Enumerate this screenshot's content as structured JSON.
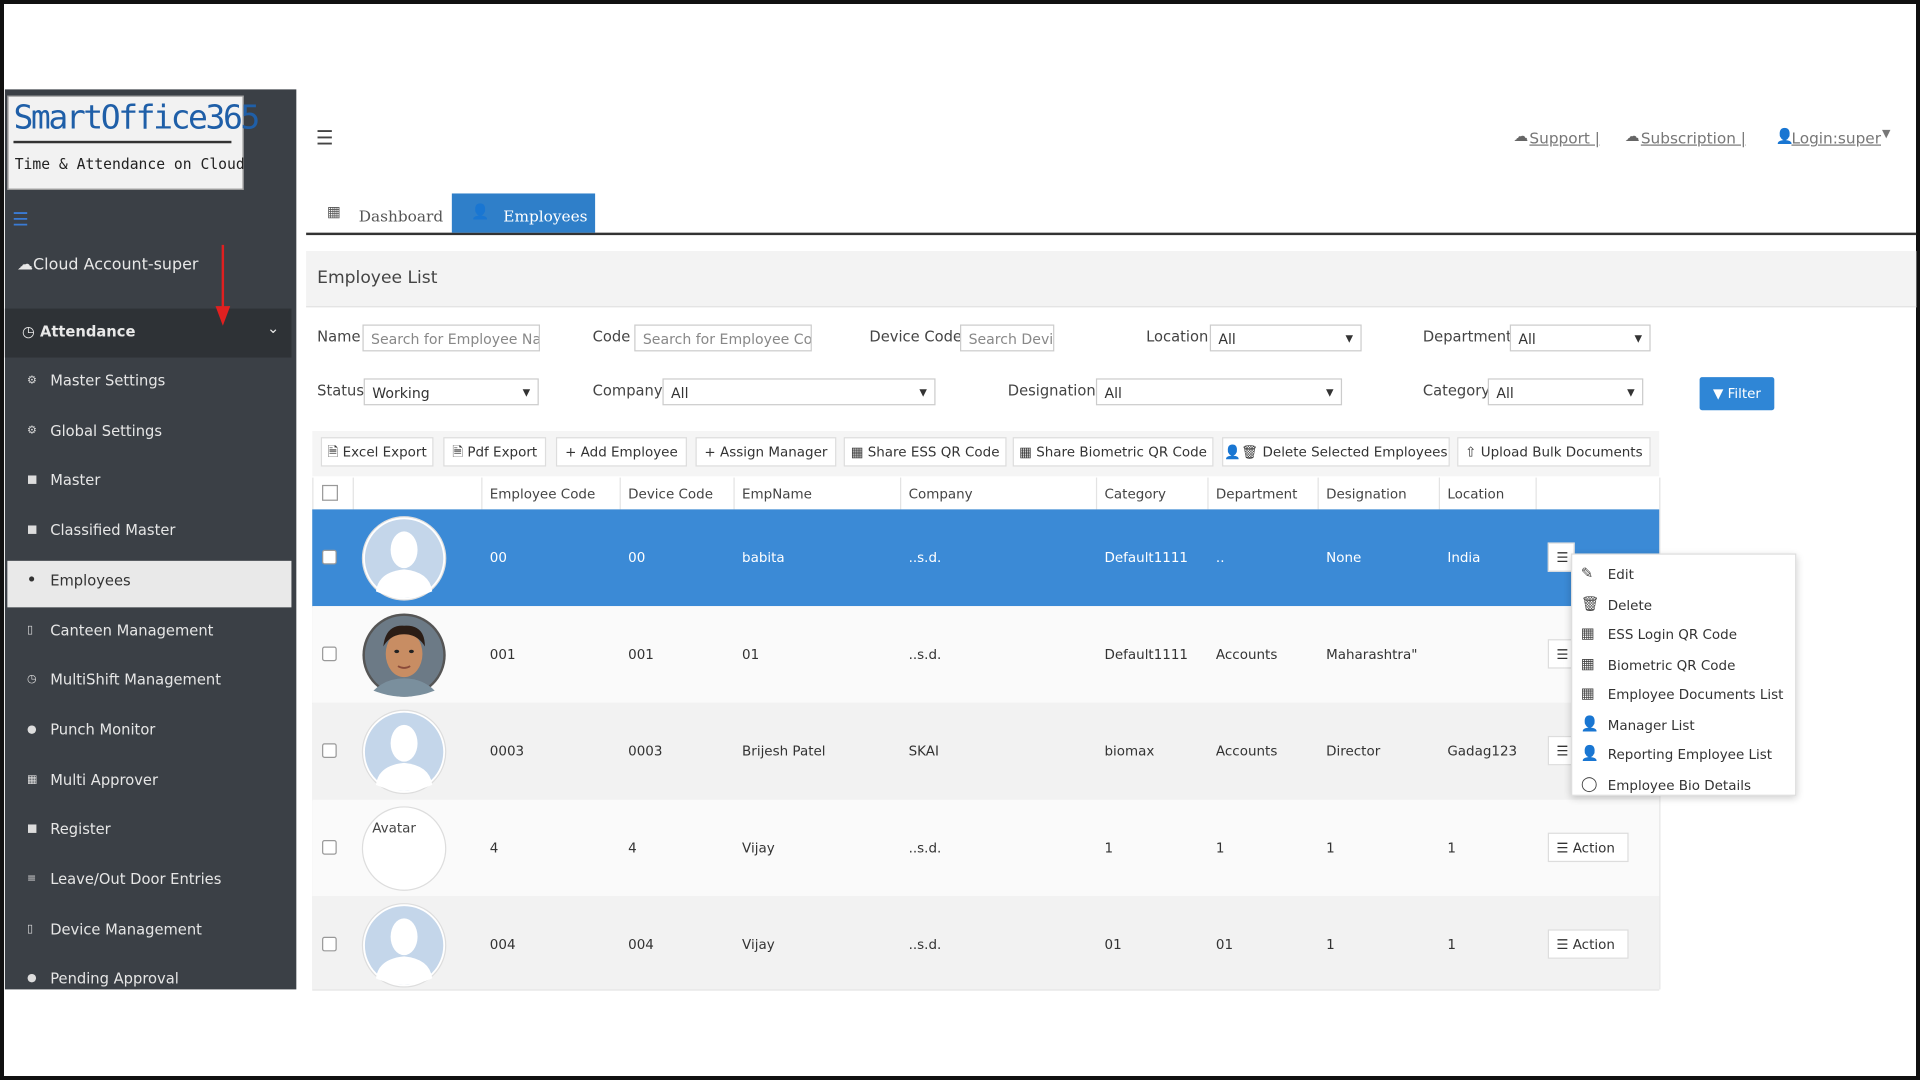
{
  "logo": {
    "title": "SmartOffice365",
    "subtitle": "Time & Attendance on Cloud"
  },
  "sidebar": {
    "account": "Cloud Account-super",
    "section": "Attendance",
    "items": [
      "Master Settings",
      "Global Settings",
      "Master",
      "Classified Master",
      "Employees",
      "Canteen Management",
      "MultiShift Management",
      "Punch Monitor",
      "Multi Approver",
      "Register",
      "Leave/Out Door Entries",
      "Device Management",
      "Pending Approval"
    ],
    "active": "Employees"
  },
  "header": {
    "links": [
      "Support |",
      "Subscription |",
      "Login:super"
    ]
  },
  "tabs": [
    "Dashboard",
    "Employees"
  ],
  "page_title": "Employee List",
  "filters": [
    {
      "label": "Name",
      "value": "Search for Employee Name",
      "kind": "input"
    },
    {
      "label": "Code",
      "value": "Search for Employee Code",
      "kind": "input"
    },
    {
      "label": "Device Code",
      "value": "Search Device Code",
      "kind": "input"
    },
    {
      "label": "Location",
      "value": "All",
      "kind": "select"
    },
    {
      "label": "Department",
      "value": "All",
      "kind": "select"
    },
    {
      "label": "Status",
      "value": "Working",
      "kind": "select"
    },
    {
      "label": "Company",
      "value": "All",
      "kind": "select"
    },
    {
      "label": "Designation",
      "value": "All",
      "kind": "select"
    },
    {
      "label": "Category",
      "value": "All",
      "kind": "select"
    }
  ],
  "filter_button": "Filter",
  "toolbar": [
    "Excel Export",
    "Pdf Export",
    "Add Employee",
    "Assign Manager",
    "Share ESS QR Code",
    "Share Biometric QR Code",
    "Delete Selected Employees",
    "Upload Bulk Documents"
  ],
  "table": {
    "columns": [
      "Employee Code",
      "Device Code",
      "EmpName",
      "Company",
      "Category",
      "Department",
      "Designation",
      "Location"
    ],
    "rows": [
      [
        "00",
        "00",
        "babita",
        "..s.d.",
        "Default1111",
        "..",
        "None",
        "India"
      ],
      [
        "001",
        "001",
        "01",
        "..s.d.",
        "Default1111",
        "Accounts",
        "Maharashtra\"",
        null
      ],
      [
        "0003",
        "0003",
        "Brijesh Patel",
        "SKAI",
        "biomax",
        "Accounts",
        "Director",
        "Gadag123"
      ],
      [
        "4",
        "4",
        "Vijay",
        "..s.d.",
        "1",
        "1",
        "1",
        "1"
      ],
      [
        "004",
        "004",
        "Vijay",
        "..s.d.",
        "01",
        "01",
        "1",
        "1"
      ]
    ],
    "broken_avatar_text": "Avatar",
    "action_label": "Action"
  },
  "action_menu": [
    "Edit",
    "Delete",
    "ESS Login QR Code",
    "Biometric QR Code",
    "Employee Documents List",
    "Manager List",
    "Reporting Employee List",
    "Employee Bio Details"
  ]
}
